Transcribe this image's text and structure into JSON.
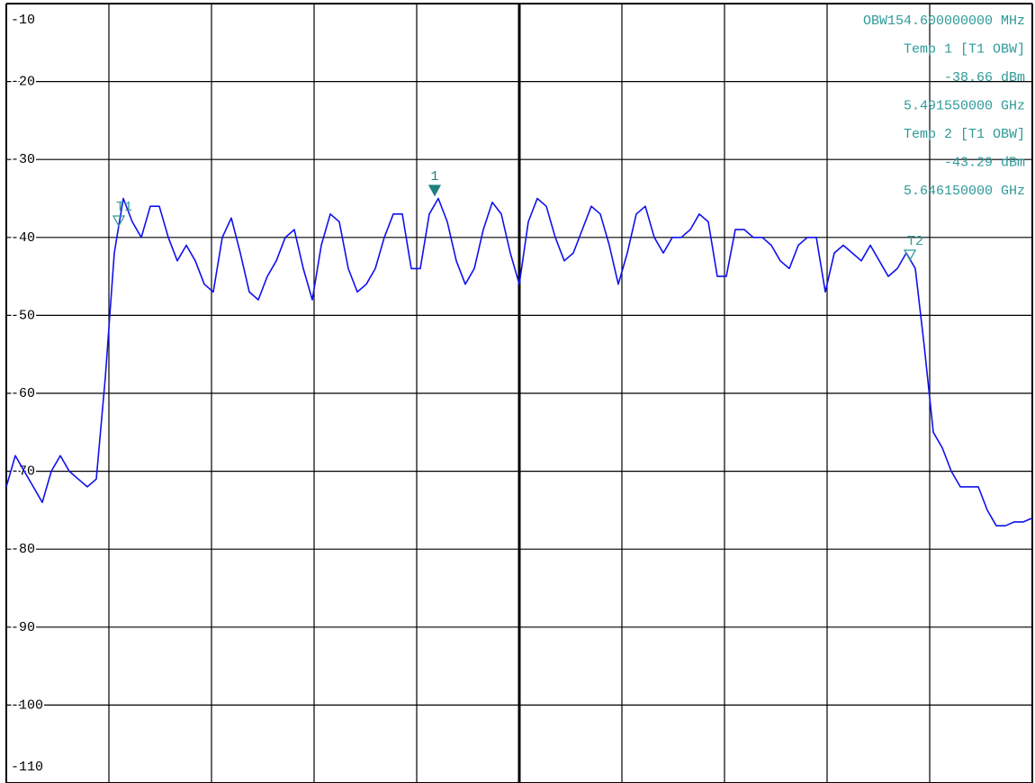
{
  "chart_data": {
    "type": "line",
    "ylim": [
      -110,
      -10
    ],
    "yticks": [
      -10,
      -20,
      -30,
      -40,
      -50,
      -60,
      -70,
      -80,
      -90,
      -100,
      -110
    ],
    "grid": true,
    "series": [
      {
        "color": "#1010ee",
        "values": [
          -72,
          -68,
          -70,
          -72,
          -74,
          -70,
          -68,
          -70,
          -71,
          -72,
          -71,
          -58,
          -42,
          -35,
          -38,
          -40,
          -36,
          -36,
          -40,
          -43,
          -41,
          -43,
          -46,
          -47,
          -40,
          -37.5,
          -42,
          -47,
          -48,
          -45,
          -43,
          -40,
          -39,
          -44,
          -48,
          -41,
          -37,
          -38,
          -44,
          -47,
          -46,
          -44,
          -40,
          -37,
          -37,
          -44,
          -44,
          -37,
          -35,
          -38,
          -43,
          -46,
          -44,
          -39,
          -35.5,
          -37,
          -42,
          -46,
          -38,
          -35,
          -36,
          -40,
          -43,
          -42,
          -39,
          -36,
          -37,
          -41,
          -46,
          -42,
          -37,
          -36,
          -40,
          -42,
          -40,
          -40,
          -39,
          -37,
          -38,
          -45,
          -45,
          -39,
          -39,
          -40,
          -40,
          -41,
          -43,
          -44,
          -41,
          -40,
          -40,
          -47,
          -42,
          -41,
          -42,
          -43,
          -41,
          -43,
          -45,
          -44,
          -42,
          -44,
          -54,
          -65,
          -67,
          -70,
          -72,
          -72,
          -72,
          -75,
          -77,
          -77,
          -76.5,
          -76.5,
          -76
        ]
      }
    ],
    "markers": [
      {
        "label": "T1",
        "color": "#2e9a98"
      },
      {
        "label": "1",
        "color": "#1f7f7d"
      },
      {
        "label": "T2",
        "color": "#2e9a98"
      }
    ],
    "annotations": [
      "OBW154.600000000 MHz",
      "Temp 1 [T1 OBW]",
      "-38.66 dBm",
      "5.491550000 GHz",
      "Temp 2 [T1 OBW]",
      "-43.29 dBm",
      "5.646150000 GHz"
    ]
  }
}
